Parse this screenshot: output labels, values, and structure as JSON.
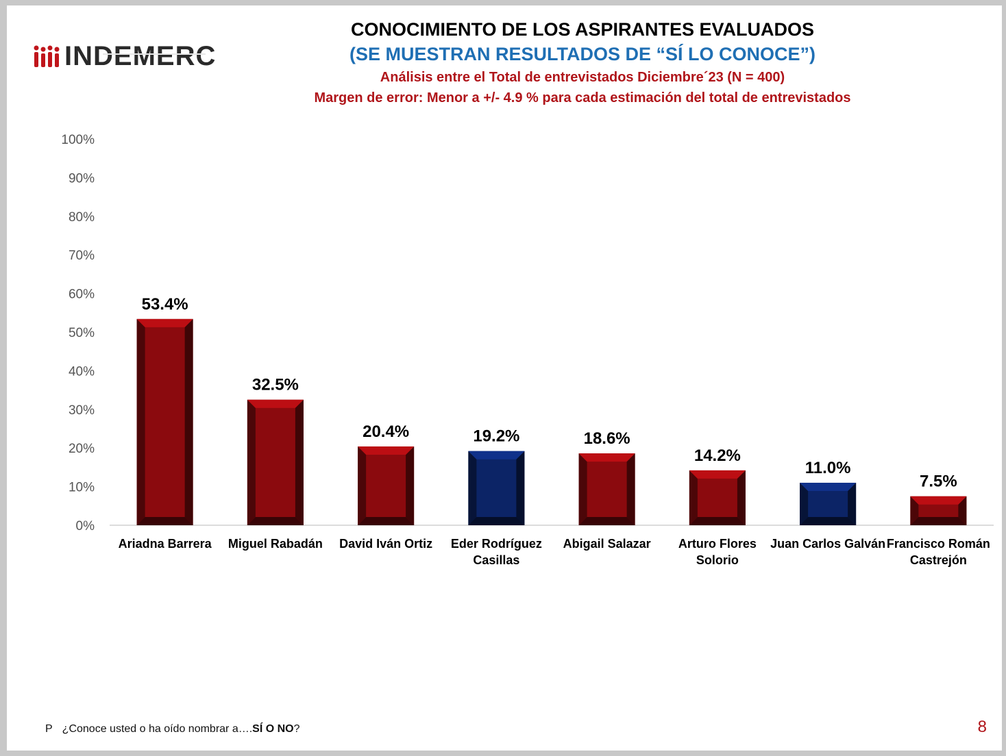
{
  "logo": {
    "text": "INDEMERC"
  },
  "header": {
    "title": "CONOCIMIENTO DE LOS ASPIRANTES EVALUADOS",
    "subtitle": "(SE MUESTRAN RESULTADOS DE  “SÍ LO CONOCE”)",
    "analysis": "Análisis entre el Total de entrevistados Diciembre´23  (N = 400)",
    "margin": "Margen de error: Menor a +/- 4.9 %  para cada estimación del total de entrevistados"
  },
  "chart_data": {
    "type": "bar",
    "categories": [
      [
        "Ariadna Barrera"
      ],
      [
        "Miguel Rabadán"
      ],
      [
        "David Iván Ortiz"
      ],
      [
        "Eder Rodríguez",
        "Casillas"
      ],
      [
        "Abigail Salazar"
      ],
      [
        "Arturo Flores",
        "Solorio"
      ],
      [
        "Juan Carlos Galván"
      ],
      [
        "Francisco Román",
        "Castrejón"
      ]
    ],
    "values": [
      53.4,
      32.5,
      20.4,
      19.2,
      18.6,
      14.2,
      11.0,
      7.5
    ],
    "data_labels": [
      "53.4%",
      "32.5%",
      "20.4%",
      "19.2%",
      "18.6%",
      "14.2%",
      "11.0%",
      "7.5%"
    ],
    "bar_colors": [
      "#8b0a0e",
      "#8b0a0e",
      "#8b0a0e",
      "#0c2466",
      "#8b0a0e",
      "#8b0a0e",
      "#0c2466",
      "#8b0a0e"
    ],
    "y_ticks": [
      "0%",
      "10%",
      "20%",
      "30%",
      "40%",
      "50%",
      "60%",
      "70%",
      "80%",
      "90%",
      "100%"
    ],
    "ylim": [
      0,
      100
    ],
    "grid": false,
    "legend": "none"
  },
  "footnote": {
    "marker": "P",
    "text": "¿Conoce usted o ha oído nombrar a….",
    "emphasis": "SÍ O NO",
    "end": "?"
  },
  "page_number": "8",
  "colors": {
    "red": "#8b0a0e",
    "blue": "#0c2466",
    "title_blue": "#1f6fb4",
    "accent_red": "#b0151a"
  }
}
